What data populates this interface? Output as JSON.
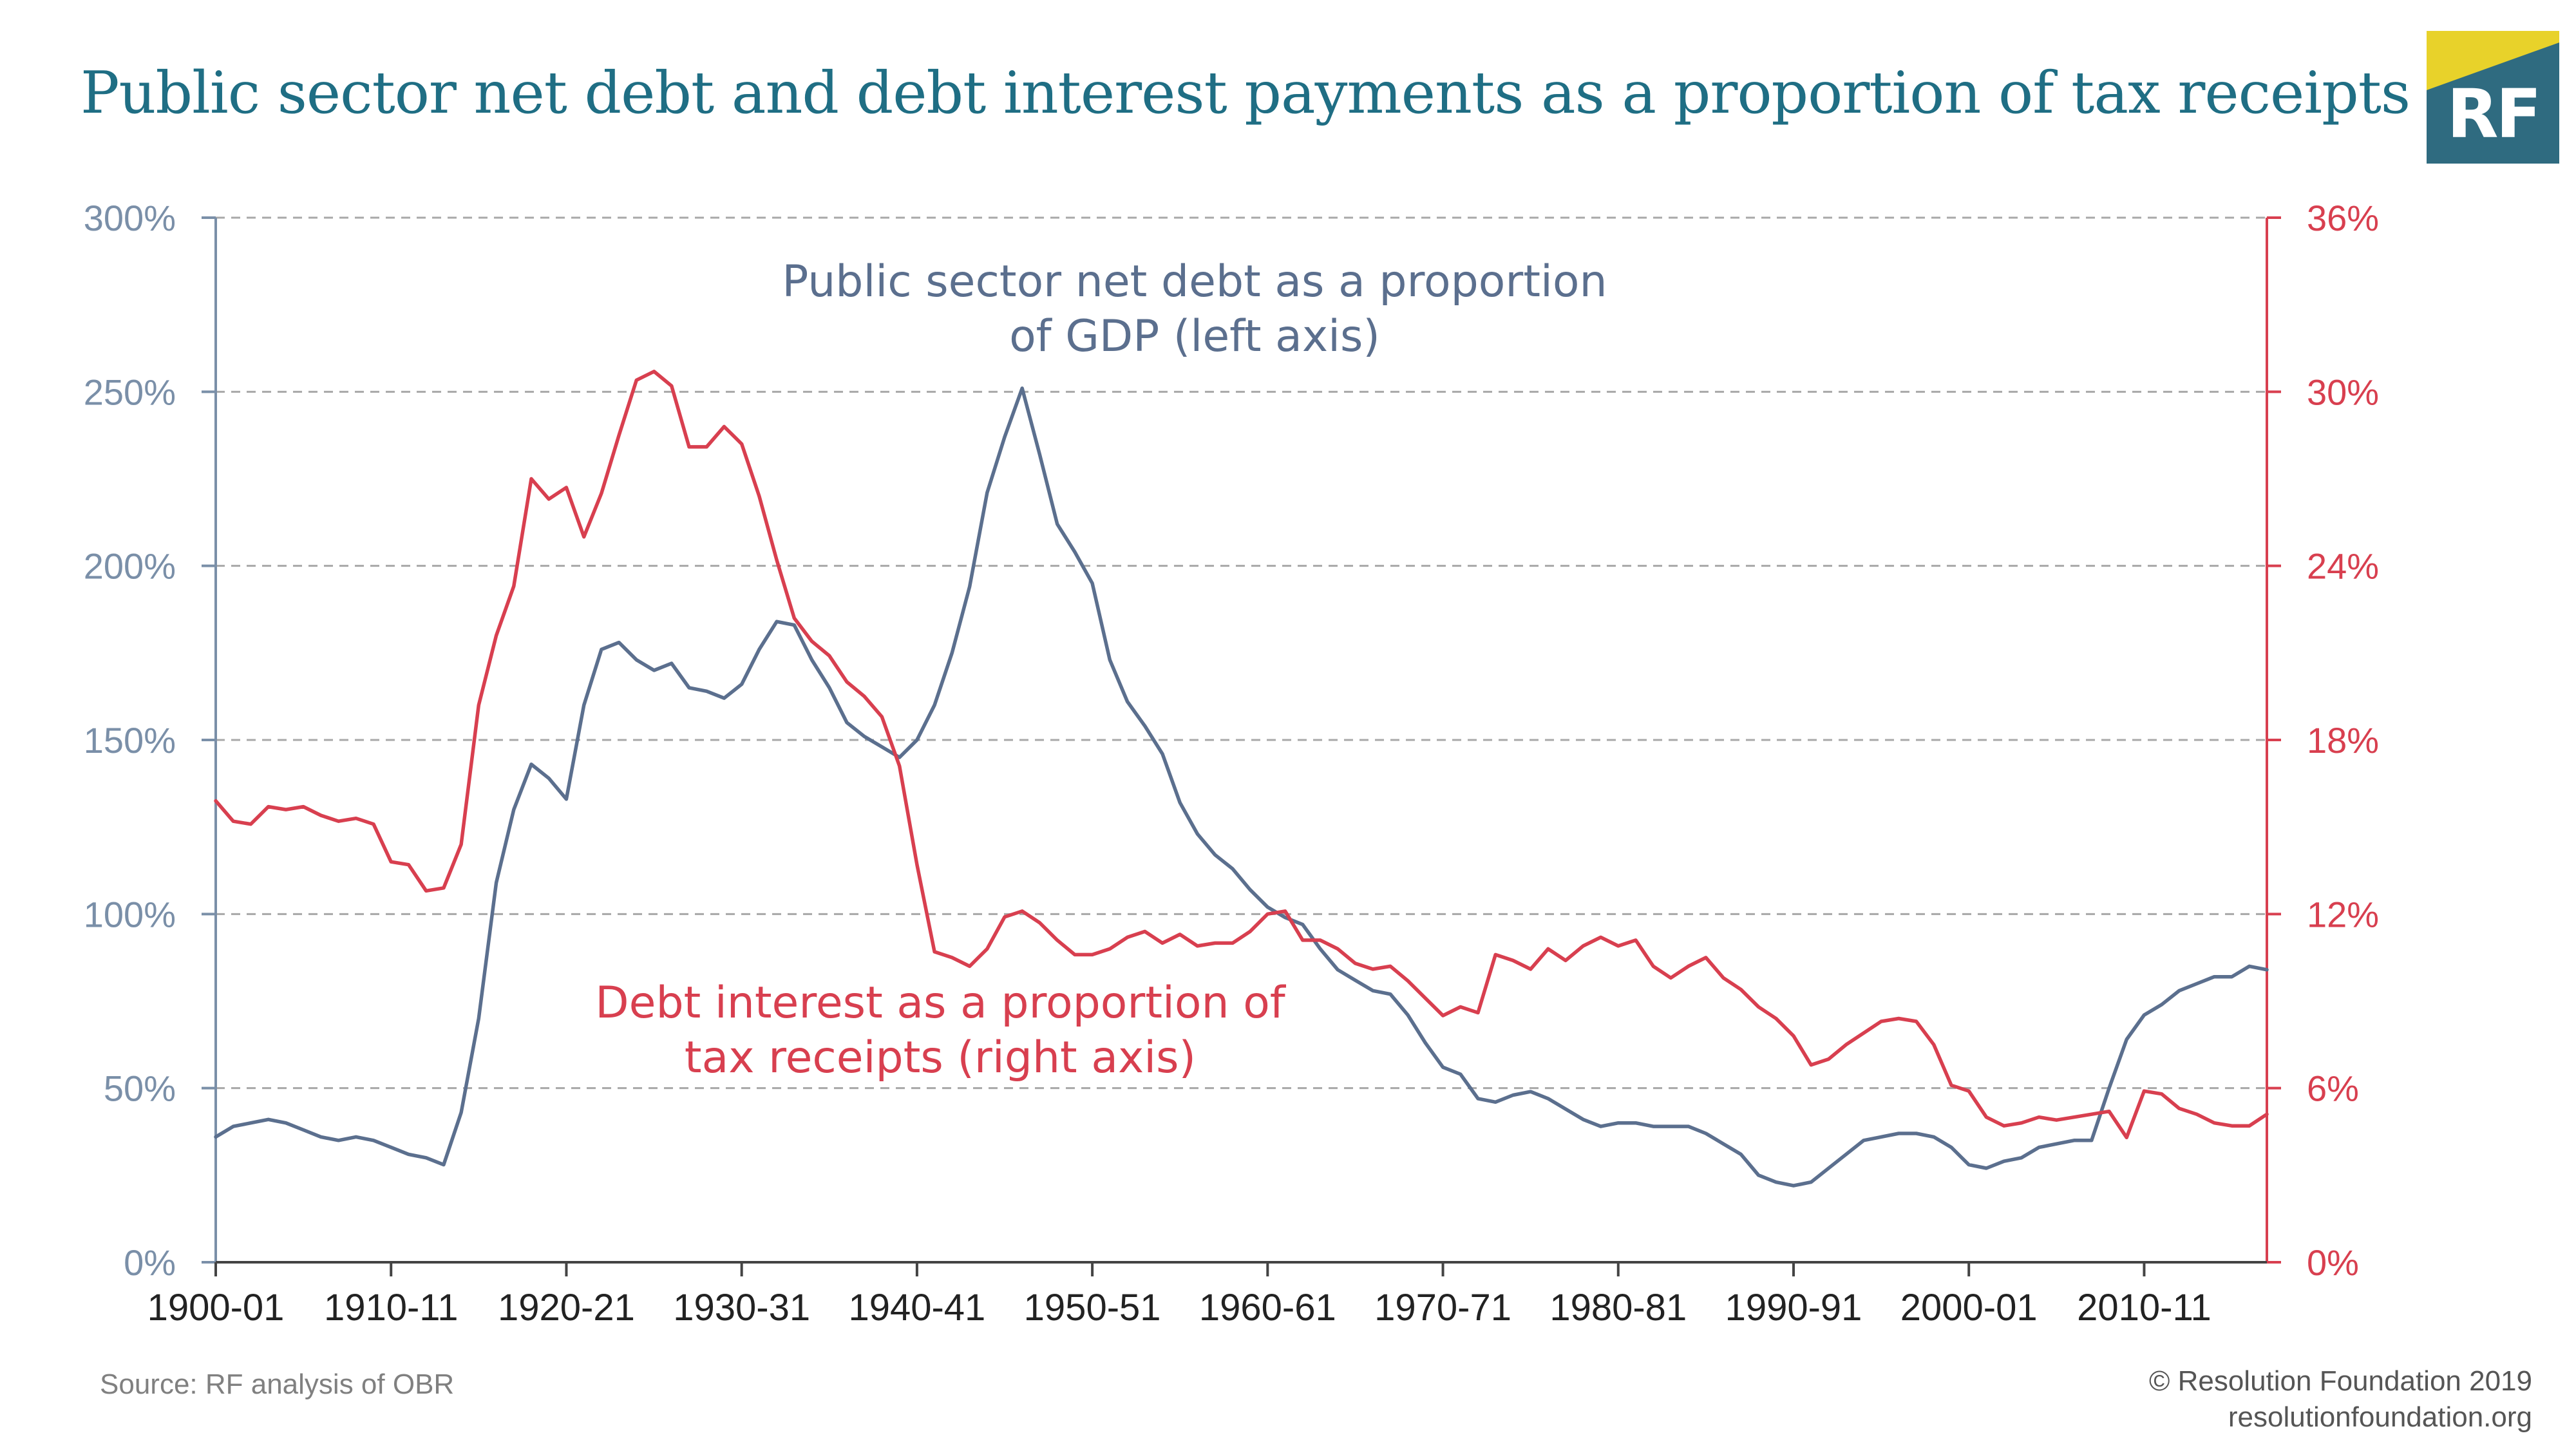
{
  "title": "Public sector net debt and debt interest payments as a proportion of tax receipts",
  "logo": {
    "text": "RF",
    "colors": {
      "box": "#2f6b80",
      "corner": "#e8d22a"
    }
  },
  "source": "Source: RF analysis of OBR",
  "copyright": {
    "line1": "© Resolution Foundation 2019",
    "line2": "resolutionfoundation.org"
  },
  "colors": {
    "debt": "#5b6f8e",
    "interest": "#d83f4f",
    "grid": "#a8a8a8",
    "axis_left": "#7a8fa8"
  },
  "chart_data": {
    "type": "line",
    "grid": true,
    "x_tick_labels": [
      "1900-01",
      "1910-11",
      "1920-21",
      "1930-31",
      "1940-41",
      "1950-51",
      "1960-61",
      "1970-71",
      "1980-81",
      "1990-91",
      "2000-01",
      "2010-11"
    ],
    "y_left": {
      "ticks": [
        "0%",
        "50%",
        "100%",
        "150%",
        "200%",
        "250%",
        "300%"
      ],
      "range": [
        0,
        300
      ]
    },
    "y_right": {
      "ticks": [
        "0%",
        "6%",
        "12%",
        "18%",
        "24%",
        "30%",
        "36%"
      ],
      "range": [
        0,
        36
      ]
    },
    "annotations": {
      "debt": [
        "Public sector net debt as a proportion",
        "of GDP (left axis)"
      ],
      "interest": [
        "Debt interest as a proportion of",
        "tax receipts (right axis)"
      ]
    },
    "series": [
      {
        "key": "debt",
        "axis": "left",
        "x": [
          1900,
          1901,
          1902,
          1903,
          1904,
          1905,
          1906,
          1907,
          1908,
          1909,
          1910,
          1911,
          1912,
          1913,
          1914,
          1915,
          1916,
          1917,
          1918,
          1919,
          1920,
          1921,
          1922,
          1923,
          1924,
          1925,
          1926,
          1927,
          1928,
          1929,
          1930,
          1931,
          1932,
          1933,
          1934,
          1935,
          1936,
          1937,
          1938,
          1939,
          1940,
          1941,
          1942,
          1943,
          1944,
          1945,
          1946,
          1947,
          1948,
          1949,
          1950,
          1951,
          1952,
          1953,
          1954,
          1955,
          1956,
          1957,
          1958,
          1959,
          1960,
          1961,
          1962,
          1963,
          1964,
          1965,
          1966,
          1967,
          1968,
          1969,
          1970,
          1971,
          1972,
          1973,
          1974,
          1975,
          1976,
          1977,
          1978,
          1979,
          1980,
          1981,
          1982,
          1983,
          1984,
          1985,
          1986,
          1987,
          1988,
          1989,
          1990,
          1991,
          1992,
          1993,
          1994,
          1995,
          1996,
          1997,
          1998,
          1999,
          2000,
          2001,
          2002,
          2003,
          2004,
          2005,
          2006,
          2007,
          2008,
          2009,
          2010,
          2011,
          2012,
          2013,
          2014,
          2015,
          2016,
          2017
        ],
        "values": [
          36,
          39,
          40,
          41,
          40,
          38,
          36,
          35,
          36,
          35,
          33,
          31,
          30,
          28,
          43,
          70,
          109,
          130,
          143,
          139,
          133,
          160,
          176,
          178,
          173,
          170,
          172,
          165,
          164,
          162,
          166,
          176,
          184,
          183,
          173,
          165,
          155,
          151,
          148,
          145,
          150,
          160,
          175,
          194,
          221,
          237,
          251,
          232,
          212,
          204,
          195,
          173,
          161,
          154,
          146,
          132,
          123,
          117,
          113,
          107,
          102,
          99,
          97,
          90,
          84,
          81,
          78,
          77,
          71,
          63,
          56,
          54,
          47,
          46,
          48,
          49,
          47,
          44,
          41,
          39,
          40,
          40,
          39,
          39,
          39,
          37,
          34,
          31,
          25,
          23,
          22,
          23,
          27,
          31,
          35,
          36,
          37,
          37,
          36,
          33,
          28,
          27,
          29,
          30,
          33,
          34,
          35,
          35,
          50,
          64,
          71,
          74,
          78,
          80,
          82,
          82,
          85,
          84
        ]
      },
      {
        "key": "interest",
        "axis": "right",
        "x": [
          1900,
          1901,
          1902,
          1903,
          1904,
          1905,
          1906,
          1907,
          1908,
          1909,
          1910,
          1911,
          1912,
          1913,
          1914,
          1915,
          1916,
          1917,
          1918,
          1919,
          1920,
          1921,
          1922,
          1923,
          1924,
          1925,
          1926,
          1927,
          1928,
          1929,
          1930,
          1931,
          1932,
          1933,
          1934,
          1935,
          1936,
          1937,
          1938,
          1939,
          1940,
          1941,
          1942,
          1943,
          1944,
          1945,
          1946,
          1947,
          1948,
          1949,
          1950,
          1951,
          1952,
          1953,
          1954,
          1955,
          1956,
          1957,
          1958,
          1959,
          1960,
          1961,
          1962,
          1963,
          1964,
          1965,
          1966,
          1967,
          1968,
          1969,
          1970,
          1971,
          1972,
          1973,
          1974,
          1975,
          1976,
          1977,
          1978,
          1979,
          1980,
          1981,
          1982,
          1983,
          1984,
          1985,
          1986,
          1987,
          1988,
          1989,
          1990,
          1991,
          1992,
          1993,
          1994,
          1995,
          1996,
          1997,
          1998,
          1999,
          2000,
          2001,
          2002,
          2003,
          2004,
          2005,
          2006,
          2007,
          2008,
          2009,
          2010,
          2011,
          2012,
          2013,
          2014,
          2015,
          2016,
          2017
        ],
        "values": [
          15.9,
          15.2,
          15.1,
          15.7,
          15.6,
          15.7,
          15.4,
          15.2,
          15.3,
          15.1,
          13.8,
          13.7,
          12.8,
          12.9,
          14.4,
          19.2,
          21.6,
          23.3,
          27.0,
          26.3,
          26.7,
          25.0,
          26.5,
          28.5,
          30.4,
          30.7,
          30.2,
          28.1,
          28.1,
          28.8,
          28.2,
          26.4,
          24.2,
          22.2,
          21.4,
          20.9,
          20.0,
          19.5,
          18.8,
          17.1,
          13.7,
          10.7,
          10.5,
          10.2,
          10.8,
          11.9,
          12.1,
          11.7,
          11.1,
          10.6,
          10.6,
          10.8,
          11.2,
          11.4,
          11.0,
          11.3,
          10.9,
          11.0,
          11.0,
          11.4,
          12.0,
          12.1,
          11.1,
          11.1,
          10.8,
          10.3,
          10.1,
          10.2,
          9.7,
          9.1,
          8.5,
          8.8,
          8.6,
          10.6,
          10.4,
          10.1,
          10.8,
          10.4,
          10.9,
          11.2,
          10.9,
          11.1,
          10.2,
          9.8,
          10.2,
          10.5,
          9.8,
          9.4,
          8.8,
          8.4,
          7.8,
          6.8,
          7.0,
          7.5,
          7.9,
          8.3,
          8.4,
          8.3,
          7.5,
          6.1,
          5.9,
          5.0,
          4.7,
          4.8,
          5.0,
          4.9,
          5.0,
          5.1,
          5.2,
          4.3,
          5.9,
          5.8,
          5.3,
          5.1,
          4.8,
          4.7,
          4.7,
          5.1
        ]
      }
    ]
  }
}
